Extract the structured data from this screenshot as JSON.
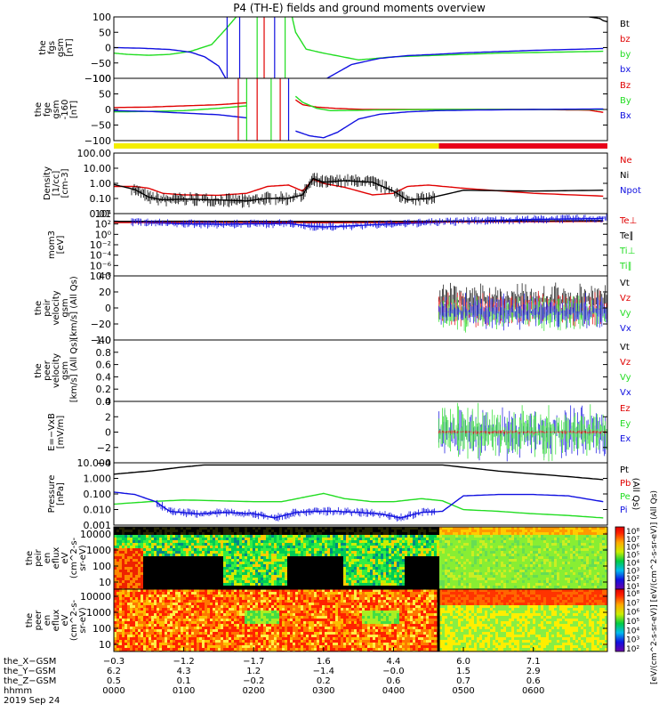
{
  "title": "P4 (TH-E) fields and ground moments overview",
  "colors": {
    "black": "#000000",
    "red": "#e00000",
    "green": "#22dd22",
    "blue": "#1010e0",
    "yellow": "#f4ee00",
    "flag_red": "#e8001a"
  },
  "chart_data": [
    {
      "id": "fgs",
      "type": "line",
      "ylabel": [
        "the",
        "fgs",
        "gsm",
        "[nT]"
      ],
      "yticks": [
        "100",
        "50",
        "0",
        "−50",
        "−100"
      ],
      "ylim": [
        -100,
        100
      ],
      "legend": [
        {
          "text": "Bt",
          "color": "#000000"
        },
        {
          "text": "bz",
          "color": "#e00000"
        },
        {
          "text": "by",
          "color": "#22dd22"
        },
        {
          "text": "bx",
          "color": "#1010e0"
        }
      ],
      "series": [
        {
          "color": "#22dd22",
          "x": [
            0,
            0.2,
            0.5,
            0.8,
            1.1,
            1.4,
            1.6,
            1.75
          ],
          "y": [
            -18,
            -22,
            -25,
            -22,
            -12,
            10,
            60,
            100
          ]
        },
        {
          "color": "#22dd22",
          "x": [
            2.55,
            2.6,
            2.75,
            3.0,
            3.5,
            4.0,
            4.5,
            5.0,
            5.5,
            6.0,
            6.5,
            7.0
          ],
          "y": [
            100,
            50,
            -5,
            -18,
            -40,
            -30,
            -26,
            -22,
            -18,
            -16,
            -14,
            -12
          ]
        },
        {
          "color": "#1010e0",
          "x": [
            0,
            0.4,
            0.8,
            1.1,
            1.3,
            1.5,
            1.6
          ],
          "y": [
            0,
            -2,
            -6,
            -15,
            -30,
            -60,
            -100
          ]
        },
        {
          "color": "#1010e0",
          "x": [
            3.05,
            3.4,
            3.8,
            4.2,
            4.6,
            5.0,
            5.5,
            6.0,
            6.5,
            7.0
          ],
          "y": [
            -100,
            -55,
            -35,
            -26,
            -22,
            -17,
            -13,
            -9,
            -6,
            -3
          ]
        },
        {
          "color": "#000000",
          "x": [
            6.8,
            6.95,
            7.0,
            7.06
          ],
          "y": [
            100,
            95,
            88,
            84
          ]
        }
      ]
    },
    {
      "id": "fge",
      "type": "line",
      "ylabel": [
        "the",
        "fge",
        "gsm",
        "-160",
        "[nT]"
      ],
      "yticks": [
        "100",
        "50",
        "0",
        "−50",
        "−100"
      ],
      "ylim": [
        -130,
        130
      ],
      "legend": [
        {
          "text": "Bz",
          "color": "#e00000"
        },
        {
          "text": "By",
          "color": "#22dd22"
        },
        {
          "text": "Bx",
          "color": "#1010e0"
        }
      ],
      "series": [
        {
          "color": "#e00000",
          "x": [
            0,
            0.5,
            1.0,
            1.5,
            1.9
          ],
          "y": [
            8,
            10,
            15,
            20,
            28
          ]
        },
        {
          "color": "#e00000",
          "x": [
            2.6,
            2.7,
            2.9,
            3.2,
            3.6,
            4.0,
            5.0,
            6.0,
            6.8,
            7.0
          ],
          "y": [
            40,
            20,
            10,
            4,
            0,
            0,
            0,
            0,
            -3,
            -12
          ]
        },
        {
          "color": "#22dd22",
          "x": [
            0,
            0.5,
            1.0,
            1.5,
            1.9
          ],
          "y": [
            -10,
            -8,
            -5,
            5,
            15
          ]
        },
        {
          "color": "#22dd22",
          "x": [
            2.6,
            2.7,
            2.9,
            3.1,
            3.4,
            3.8,
            4.5,
            5.0,
            6.0,
            7.0
          ],
          "y": [
            55,
            30,
            5,
            -5,
            -4,
            -2,
            0,
            0,
            0,
            0
          ]
        },
        {
          "color": "#1010e0",
          "x": [
            0,
            0.5,
            1.0,
            1.5,
            1.9
          ],
          "y": [
            -5,
            -8,
            -15,
            -22,
            -35
          ]
        },
        {
          "color": "#1010e0",
          "x": [
            2.6,
            2.8,
            3.0,
            3.2,
            3.5,
            3.8,
            4.2,
            4.6,
            5.0,
            6.0,
            7.0
          ],
          "y": [
            -90,
            -110,
            -118,
            -95,
            -40,
            -20,
            -10,
            -5,
            -3,
            0,
            2
          ]
        }
      ]
    },
    {
      "id": "density",
      "type": "line",
      "log": true,
      "ylabel": [
        "Density",
        "[1/cc]",
        "[cm-3]"
      ],
      "yticks": [
        "100.00",
        "10.00",
        "1.00",
        "0.10",
        "0.01"
      ],
      "ylim": [
        0.005,
        300
      ],
      "legend": [
        {
          "text": "Ne",
          "color": "#e00000"
        },
        {
          "text": "Ni",
          "color": "#000000"
        },
        {
          "text": "Npot",
          "color": "#1010e0"
        },
        {
          "text": "",
          "color": "#000000"
        }
      ],
      "series": [
        {
          "color": "#e00000",
          "x": [
            0,
            0.3,
            0.5,
            0.7,
            1.0,
            1.5,
            1.9,
            2.2,
            2.5,
            2.7,
            2.85,
            3.0,
            3.3,
            3.7,
            4.0,
            4.2,
            4.5,
            5.0,
            6.0,
            7.0
          ],
          "y": [
            0.7,
            0.7,
            0.5,
            0.2,
            0.15,
            0.14,
            0.2,
            0.7,
            0.9,
            0.3,
            2.5,
            1.2,
            0.6,
            0.15,
            0.2,
            0.7,
            0.9,
            0.5,
            0.2,
            0.12
          ]
        },
        {
          "color": "#000000",
          "x": [
            0,
            0.3,
            0.5,
            0.7,
            1.0,
            1.5,
            1.9,
            2.2,
            2.5,
            2.7,
            2.85,
            3.0,
            3.3,
            3.7,
            4.0,
            4.2,
            4.5,
            5.0,
            6.0,
            7.0
          ],
          "y": [
            1.0,
            0.4,
            0.1,
            0.06,
            0.07,
            0.06,
            0.05,
            0.08,
            0.08,
            0.15,
            3,
            1.5,
            2,
            1.5,
            0.3,
            0.06,
            0.08,
            0.35,
            0.3,
            0.35
          ]
        }
      ]
    },
    {
      "id": "mom",
      "type": "line",
      "log": true,
      "ylabel": [
        "mom3",
        "[eV]"
      ],
      "yticks": [
        "10⁴",
        "10²",
        "10⁰",
        "10⁻²",
        "10⁻⁴",
        "10⁻⁶",
        "10⁻⁸"
      ],
      "ylim": [
        1e-09,
        100000.0
      ],
      "legend": [
        {
          "text": "Te⊥",
          "color": "#e00000"
        },
        {
          "text": "Te∥",
          "color": "#000000"
        },
        {
          "text": "Ti⊥",
          "color": "#22dd22"
        },
        {
          "text": "Ti∥",
          "color": "#22dd22"
        }
      ],
      "series": [
        {
          "color": "#1010e0",
          "x": [
            0,
            0.5,
            1.0,
            1.5,
            2.0,
            2.5,
            2.8,
            3.0,
            3.3,
            3.7,
            4.0,
            4.4,
            5.0,
            6.0,
            7.0
          ],
          "y": [
            2000,
            1000,
            500,
            400,
            500,
            600,
            150,
            100,
            150,
            300,
            500,
            800,
            2000,
            5000,
            8000
          ]
        },
        {
          "color": "#e00000",
          "x": [
            0,
            1.0,
            2.0,
            3.0,
            4.0,
            5.0,
            6.0,
            7.0
          ],
          "y": [
            1000,
            1100,
            1050,
            900,
            1000,
            1400,
            1600,
            1800
          ]
        },
        {
          "color": "#000000",
          "x": [
            0,
            1.0,
            2.0,
            3.0,
            4.0,
            5.0,
            6.0,
            7.0
          ],
          "y": [
            1800,
            1900,
            1800,
            1700,
            1800,
            2100,
            2300,
            2500
          ]
        }
      ]
    },
    {
      "id": "peir_vel",
      "type": "line",
      "ylabel": [
        "the",
        "peir",
        "velocity",
        "gsm",
        "[km/s] (All Qs)"
      ],
      "yticks": [
        "40",
        "20",
        "0",
        "−20",
        "−40"
      ],
      "ylim": [
        -45,
        45
      ],
      "legend": [
        {
          "text": "Vt",
          "color": "#000000"
        },
        {
          "text": "Vz",
          "color": "#e00000"
        },
        {
          "text": "Vy",
          "color": "#22dd22"
        },
        {
          "text": "Vx",
          "color": "#1010e0"
        }
      ],
      "noise_from": 4.65,
      "series": []
    },
    {
      "id": "peer_vel",
      "type": "line",
      "ylabel": [
        "the",
        "peer",
        "velocity",
        "gsm",
        "[km/s] (All Qs)"
      ],
      "yticks": [
        "1.0",
        "0.8",
        "0.6",
        "0.4",
        "0.2",
        "0.0"
      ],
      "ylim": [
        0,
        1
      ],
      "legend": [
        {
          "text": "Vt",
          "color": "#000000"
        },
        {
          "text": "Vz",
          "color": "#e00000"
        },
        {
          "text": "Vy",
          "color": "#22dd22"
        },
        {
          "text": "Vx",
          "color": "#1010e0"
        }
      ],
      "series": []
    },
    {
      "id": "exb",
      "type": "line",
      "ylabel": [
        "E=−VxB",
        "[mV/m]"
      ],
      "yticks": [
        "4",
        "2",
        "0",
        "−2",
        "−4"
      ],
      "ylim": [
        -4.5,
        4.5
      ],
      "legend": [
        {
          "text": "Ez",
          "color": "#e00000"
        },
        {
          "text": "Ey",
          "color": "#22dd22"
        },
        {
          "text": "Ex",
          "color": "#1010e0"
        }
      ],
      "noise_from": 4.65,
      "series": []
    },
    {
      "id": "pressure",
      "type": "line",
      "log": true,
      "ylabel": [
        "Pressure",
        "[nPa]"
      ],
      "yticks": [
        "10.000",
        "1.000",
        "0.100",
        "0.010",
        "0.001"
      ],
      "ylim": [
        0.0006,
        20
      ],
      "legend": [
        {
          "text": "Pt",
          "color": "#000000"
        },
        {
          "text": "Pb",
          "color": "#e00000"
        },
        {
          "text": "Pe",
          "color": "#22dd22"
        },
        {
          "text": "Pi",
          "color": "#1010e0"
        },
        {
          "text": "(All Qs)",
          "color": "#000000"
        }
      ],
      "series": [
        {
          "color": "#000000",
          "x": [
            0,
            0.5,
            1.0,
            1.3,
            4.7,
            5.5,
            6.5,
            7.0
          ],
          "y": [
            3,
            5,
            10,
            14,
            14,
            5,
            2,
            1.2
          ]
        },
        {
          "color": "#22dd22",
          "x": [
            0,
            0.5,
            1.0,
            1.5,
            2.0,
            2.4,
            2.7,
            3.0,
            3.3,
            3.7,
            4.0,
            4.4,
            4.7,
            5.0,
            5.5,
            6.0,
            6.5,
            7.0
          ],
          "y": [
            0.02,
            0.03,
            0.04,
            0.035,
            0.03,
            0.03,
            0.06,
            0.12,
            0.05,
            0.03,
            0.03,
            0.05,
            0.035,
            0.008,
            0.006,
            0.004,
            0.003,
            0.002
          ]
        },
        {
          "color": "#1010e0",
          "x": [
            0,
            0.3,
            0.6,
            0.8,
            1.2,
            1.6,
            2.0,
            2.3,
            2.6,
            2.9,
            3.2,
            3.5,
            3.8,
            4.1,
            4.4,
            4.7,
            5.0,
            5.5,
            6.0,
            6.5,
            7.0
          ],
          "y": [
            0.15,
            0.1,
            0.03,
            0.006,
            0.004,
            0.005,
            0.004,
            0.002,
            0.005,
            0.006,
            0.006,
            0.005,
            0.004,
            0.002,
            0.005,
            0.006,
            0.08,
            0.1,
            0.1,
            0.08,
            0.03
          ]
        }
      ]
    },
    {
      "id": "peir_en",
      "type": "heatmap",
      "ylabel": [
        "the",
        "peir",
        "en",
        "eflux",
        "eV",
        "(cm^2-s-",
        "sr-eV)"
      ],
      "yticks": [
        "10000",
        "1000",
        "100",
        "10"
      ],
      "ylim": [
        5,
        30000
      ]
    },
    {
      "id": "peer_en",
      "type": "heatmap",
      "ylabel": [
        "the",
        "peer",
        "en",
        "eflux",
        "eV",
        "(cm^2-s-",
        "sr-eV)"
      ],
      "yticks": [
        "10000",
        "1000",
        "100",
        "10"
      ],
      "ylim": [
        5,
        30000
      ]
    }
  ],
  "colorbar": {
    "ticks": [
      "10⁸",
      "10⁷",
      "10⁶",
      "10⁵",
      "10⁴",
      "10³",
      "10²",
      "10¹"
    ],
    "ticks2": [
      "10⁸",
      "10⁷",
      "10⁶",
      "10⁵",
      "10⁴",
      "10³",
      "10²"
    ],
    "label": "[eV/(cm^2-s-sr-eV)] [eV/(cm^2-s-sr-eV)] (All Qs)"
  },
  "x_axis": {
    "xlim": [
      0,
      7.06
    ],
    "rows": [
      "the_X−GSM",
      "the_Y−GSM",
      "the_Z−GSM",
      "hhmm",
      "2019 Sep 24"
    ],
    "ticks": [
      {
        "x": 0,
        "vals": [
          "−0.3",
          "6.2",
          "0.5",
          "0000"
        ]
      },
      {
        "x": 1,
        "vals": [
          "−1.2",
          "4.3",
          "0.1",
          "0100"
        ]
      },
      {
        "x": 2,
        "vals": [
          "−1.7",
          "1.2",
          "−0.2",
          "0200"
        ]
      },
      {
        "x": 3,
        "vals": [
          "1.6",
          "−1.4",
          "0.2",
          "0300"
        ]
      },
      {
        "x": 4,
        "vals": [
          "4.4",
          "−0.0",
          "0.6",
          "0400"
        ]
      },
      {
        "x": 5,
        "vals": [
          "6.0",
          "1.5",
          "0.7",
          "0500"
        ]
      },
      {
        "x": 6,
        "vals": [
          "7.1",
          "2.9",
          "0.6",
          "0600"
        ]
      }
    ]
  },
  "flag_bar": {
    "yellow_until": 4.65
  }
}
